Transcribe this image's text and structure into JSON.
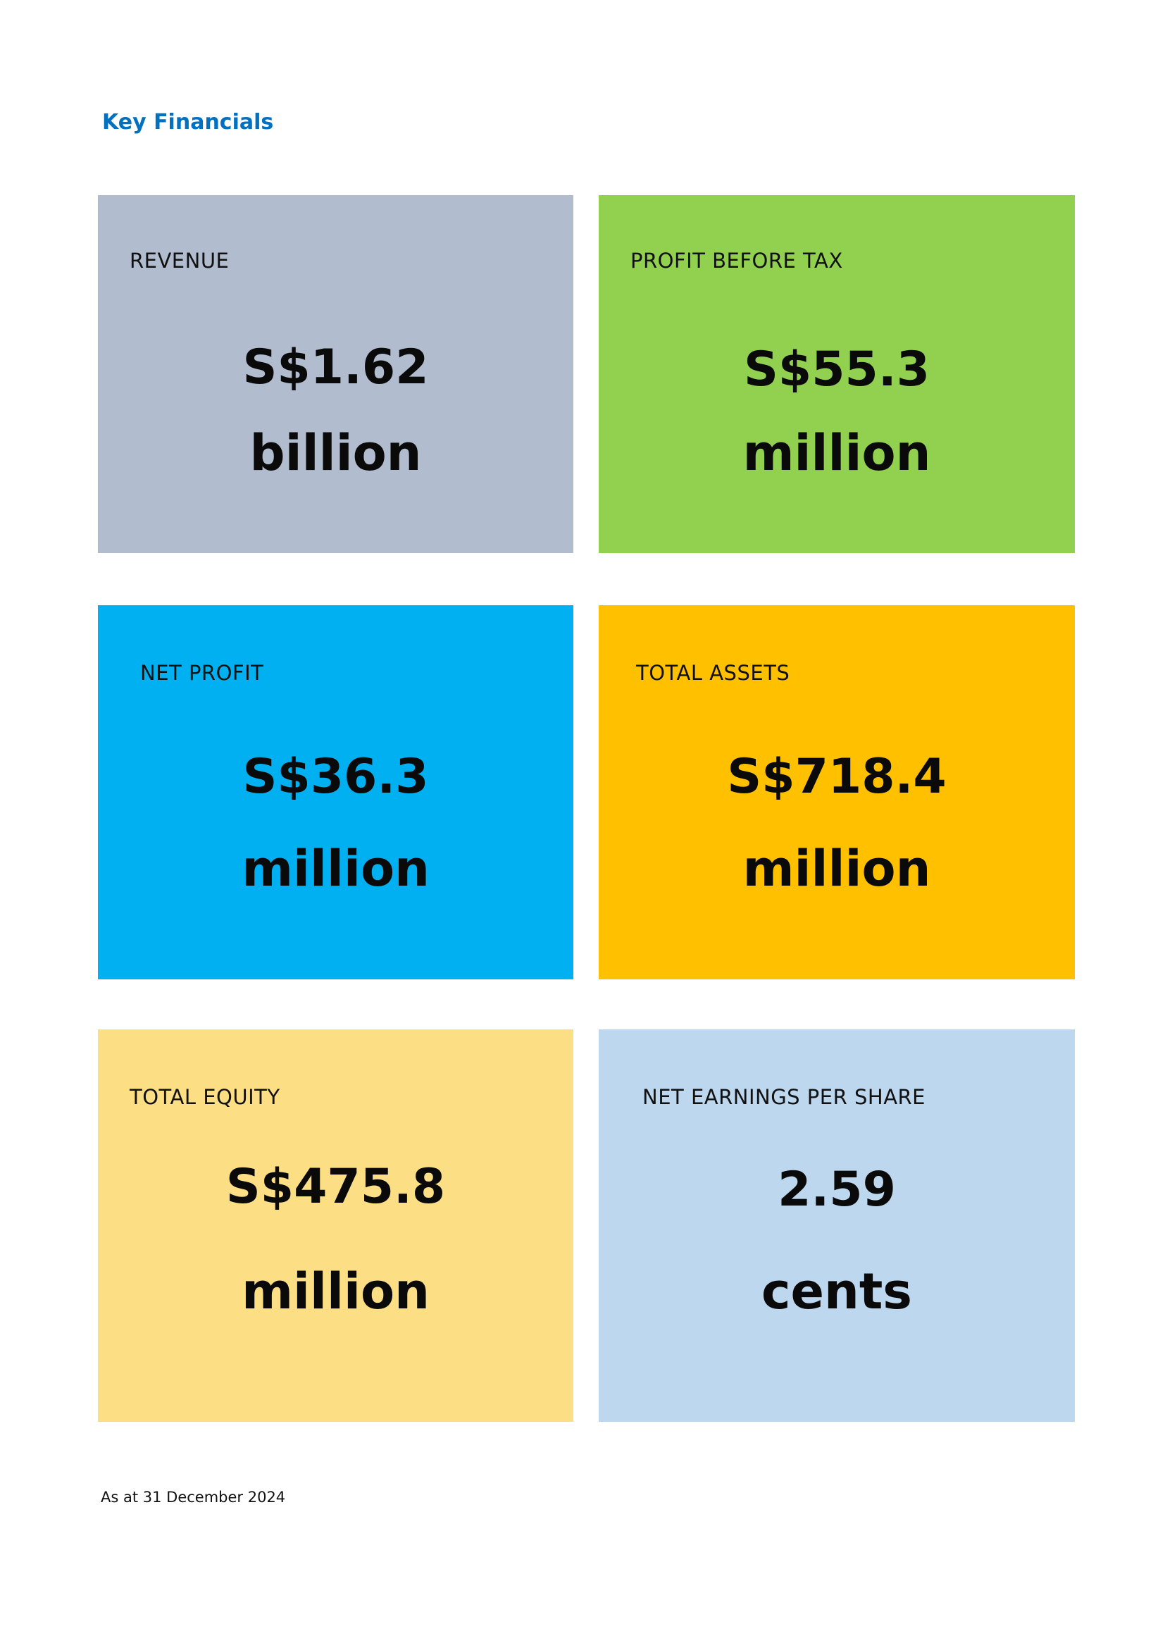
{
  "title": "Key Financials",
  "cards": [
    {
      "label": "REVENUE",
      "value": "S$1.62",
      "unit": "billion",
      "color": "#b2bccf"
    },
    {
      "label": "PROFIT BEFORE TAX",
      "value": "S$55.3",
      "unit": "million",
      "color": "#92d050"
    },
    {
      "label": "NET PROFIT",
      "value": "S$36.3",
      "unit": "million",
      "color": "#00b0f0"
    },
    {
      "label": "TOTAL ASSETS",
      "value": "S$718.4",
      "unit": "million",
      "color": "#ffc000"
    },
    {
      "label": "TOTAL EQUITY",
      "value": "S$475.8",
      "unit": "million",
      "color": "#fcdf84"
    },
    {
      "label": "NET EARNINGS PER SHARE",
      "value": "2.59",
      "unit": "cents",
      "color": "#bdd7ee"
    }
  ],
  "footnote": "As at 31 December 2024"
}
